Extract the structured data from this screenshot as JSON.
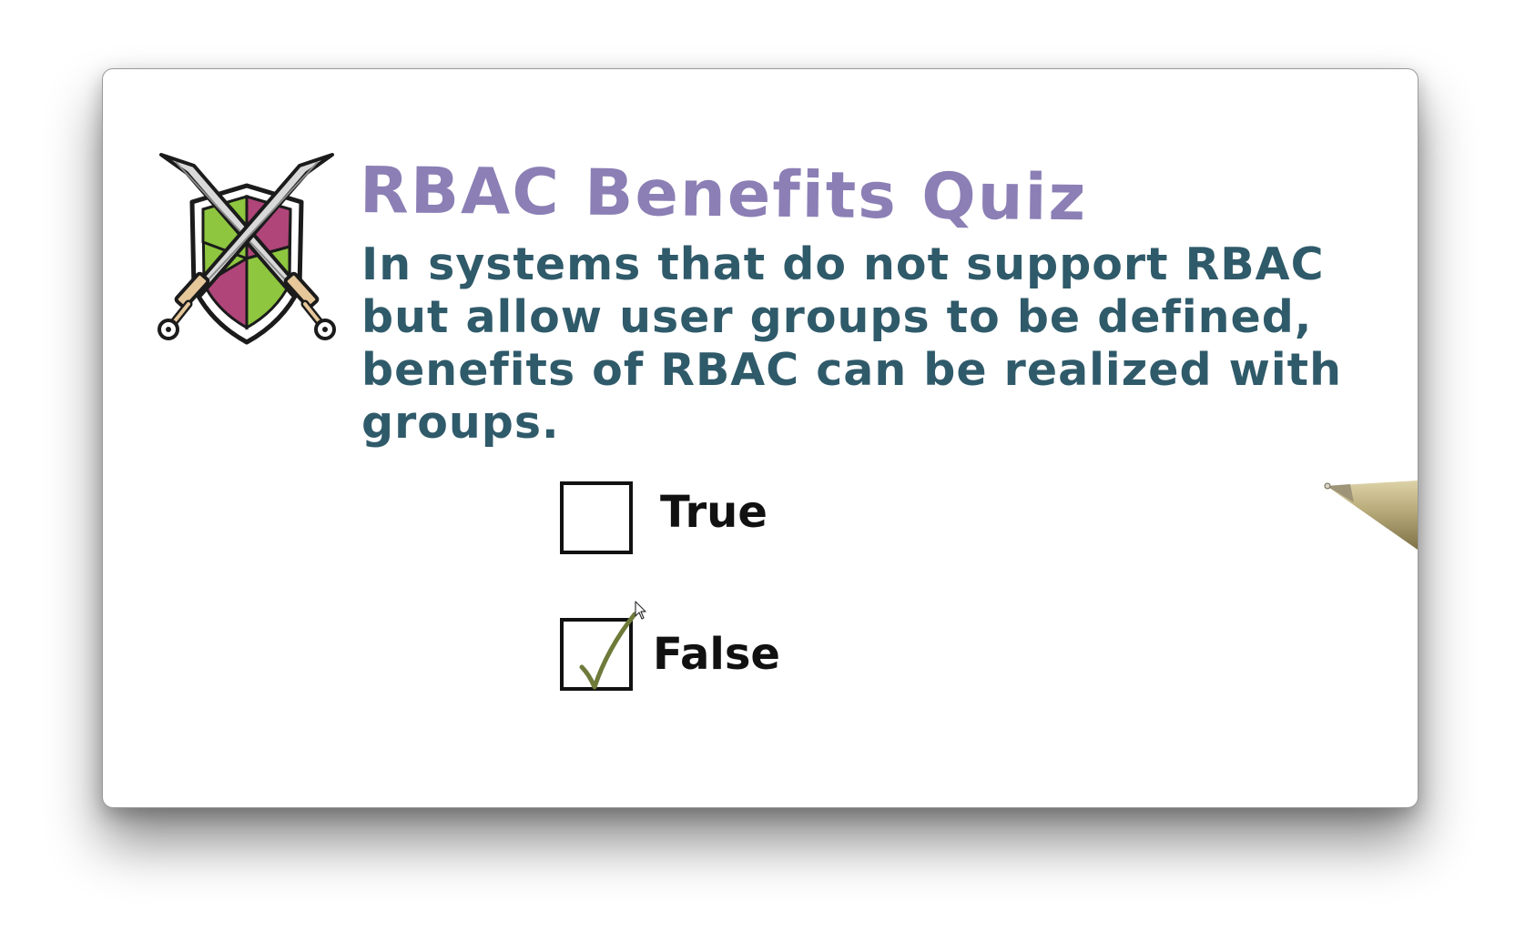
{
  "quiz": {
    "title": "RBAC Benefits Quiz",
    "question": "In systems that do not support RBAC but allow user groups to be defined, benefits of RBAC can be realized with groups.",
    "options": [
      {
        "label": "True",
        "checked": false
      },
      {
        "label": "False",
        "checked": true
      }
    ]
  },
  "icons": {
    "emblem": "crossed-swords-shield-icon",
    "check": "check-icon",
    "cursor": "mouse-cursor-icon",
    "pen": "pen-tip-icon"
  },
  "colors": {
    "title": "#8b7fb5",
    "question": "#2f5a6a",
    "check": "#6e7a3a",
    "shield_green": "#8ec63f",
    "shield_magenta": "#b0457a"
  }
}
